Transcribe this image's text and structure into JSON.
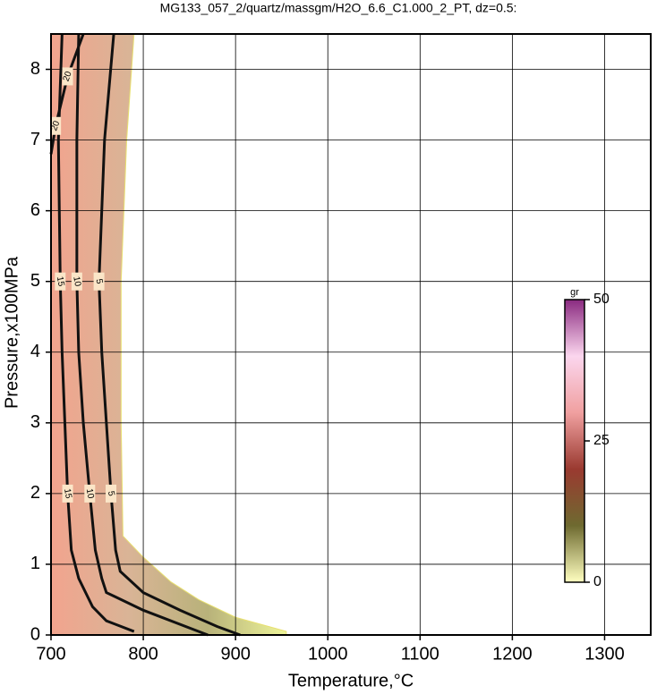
{
  "chart_data": {
    "type": "contour",
    "title": "MG133_057_2/quartz/massgm/H2O_6.6_C1.000_2_PT, dz=0.5:",
    "xlabel": "Temperature,°C",
    "ylabel": "Pressure,x100MPa",
    "xlim": [
      700,
      1350
    ],
    "ylim": [
      0,
      8.5
    ],
    "xticks": [
      700,
      800,
      900,
      1000,
      1100,
      1200,
      1300
    ],
    "yticks": [
      0,
      1,
      2,
      3,
      4,
      5,
      6,
      7,
      8
    ],
    "grid": true,
    "region": {
      "x": [
        700,
        700,
        790,
        782,
        776,
        776,
        778,
        800,
        830,
        860,
        900,
        955,
        955
      ],
      "y": [
        0,
        8.5,
        8.5,
        7,
        5,
        3,
        1.4,
        1.1,
        0.75,
        0.5,
        0.25,
        0.05,
        0
      ],
      "colors": [
        "#f2a48e",
        "#d9b496",
        "#b8b27a",
        "#eef59a"
      ]
    },
    "contours": [
      {
        "level": 5,
        "x": [
          768,
          758,
          752,
          755,
          760,
          765,
          770,
          775,
          800,
          840,
          880,
          905
        ],
        "y": [
          8.5,
          7,
          5,
          4,
          3,
          2,
          1.2,
          0.9,
          0.6,
          0.35,
          0.12,
          0
        ]
      },
      {
        "level": 10,
        "x": [
          730,
          728,
          728,
          730,
          735,
          742,
          748,
          755,
          760,
          800,
          850,
          870
        ],
        "y": [
          8.5,
          7,
          5,
          4,
          3,
          2,
          1.2,
          0.8,
          0.6,
          0.35,
          0.1,
          0
        ]
      },
      {
        "level": 15,
        "x": [
          712,
          708,
          710,
          712,
          715,
          718,
          722,
          730,
          745,
          760,
          790
        ],
        "y": [
          8.5,
          7,
          5,
          4,
          3,
          2,
          1.2,
          0.8,
          0.4,
          0.2,
          0.05
        ]
      },
      {
        "level": 20,
        "x": [
          735,
          718,
          705,
          700
        ],
        "y": [
          8.5,
          7.9,
          7.2,
          6.8
        ]
      }
    ],
    "colorbar": {
      "label": "gr",
      "lim": [
        0,
        50
      ],
      "ticks": [
        0,
        25,
        50
      ],
      "colors": [
        "#ffffc0",
        "#6e6a30",
        "#9a3a30",
        "#f0a0a0",
        "#fbd6ee",
        "#8a2a80"
      ]
    }
  }
}
